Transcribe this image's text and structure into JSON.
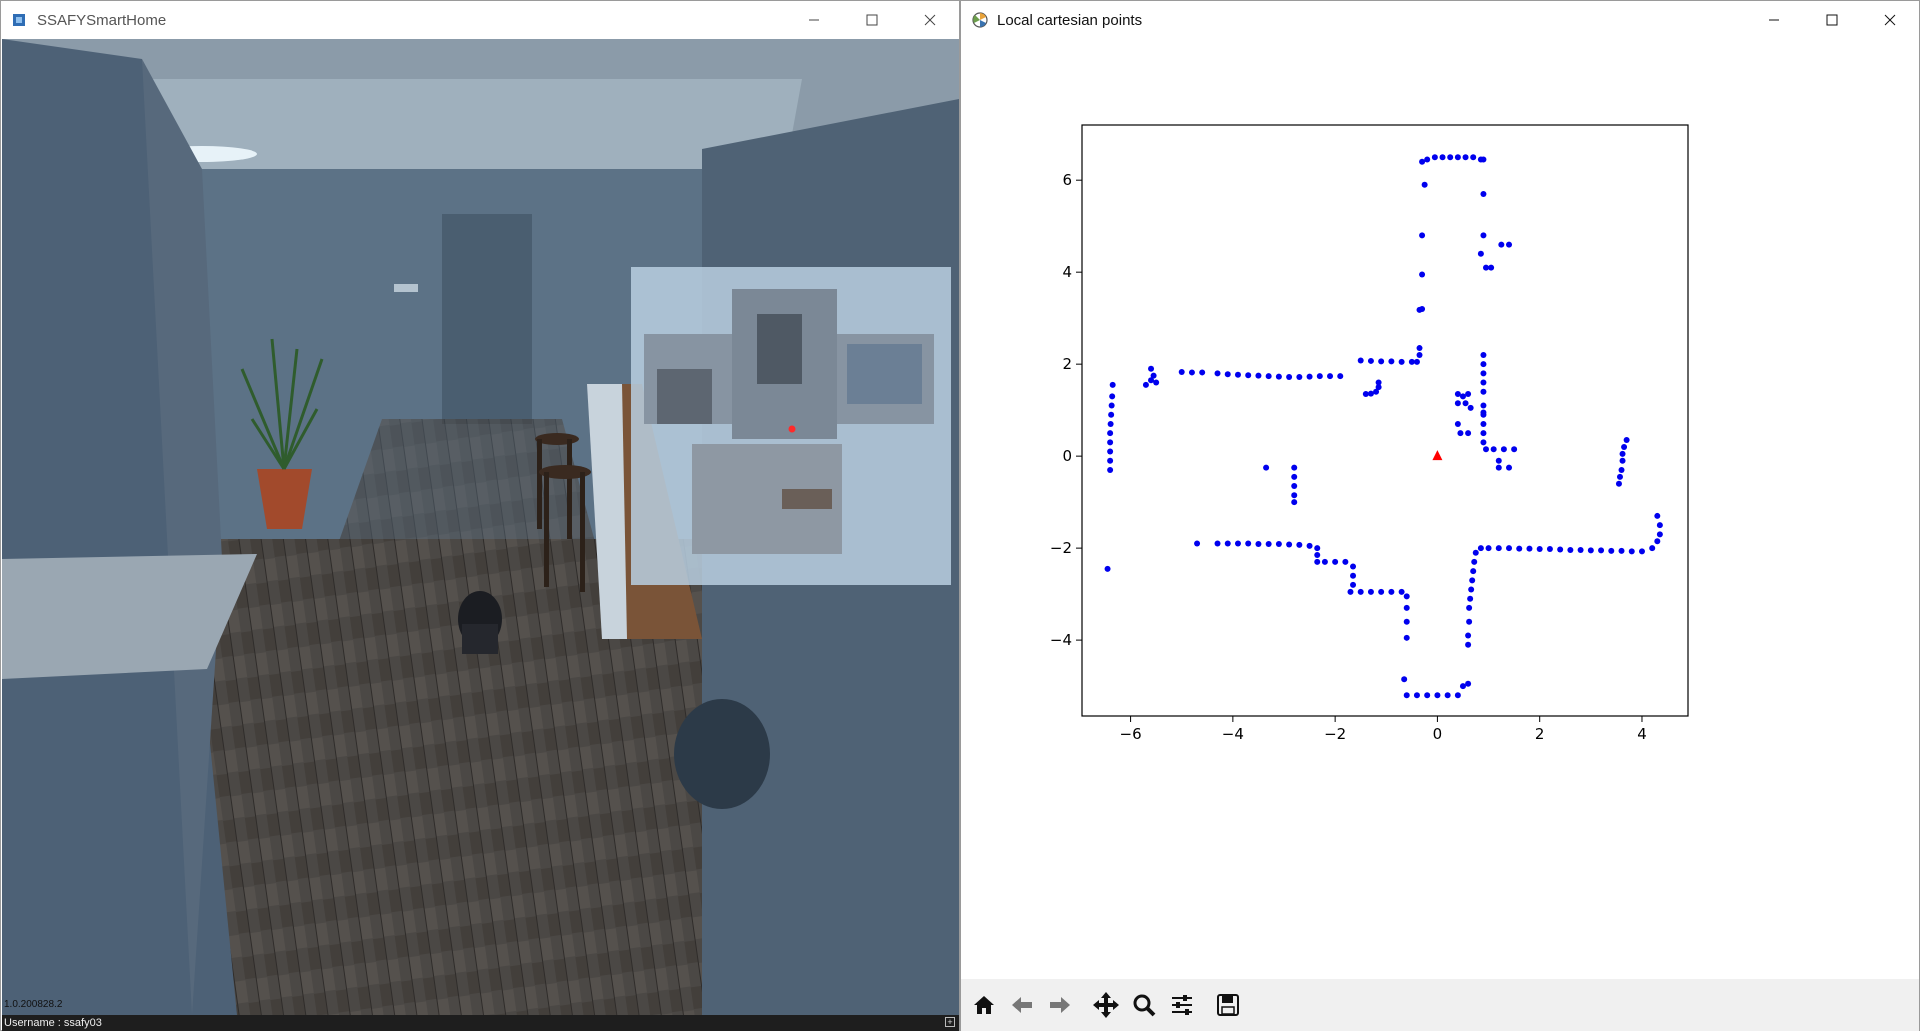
{
  "left_window": {
    "title": "SSAFYSmartHome",
    "version": "1.0.200828.2",
    "status_text": "Username : ssafy03",
    "controls": [
      "minimize-icon",
      "maximize-icon",
      "close-icon"
    ],
    "minimap_robot_color": "#ff2a2a"
  },
  "right_window": {
    "title": "Local cartesian points",
    "controls": [
      "minimize-icon",
      "maximize-icon",
      "close-icon"
    ],
    "toolbar": {
      "buttons": [
        {
          "name": "home-icon"
        },
        {
          "name": "back-arrow-icon"
        },
        {
          "name": "forward-arrow-icon"
        },
        {
          "name": "pan-move-icon"
        },
        {
          "name": "zoom-magnifier-icon"
        },
        {
          "name": "configure-subplots-icon"
        },
        {
          "name": "save-floppy-icon"
        }
      ]
    }
  },
  "chart_data": {
    "type": "scatter",
    "title": "",
    "xlabel": "",
    "ylabel": "",
    "xlim": [
      -6.95,
      4.9
    ],
    "ylim": [
      -5.65,
      7.2
    ],
    "xticks": [
      -6,
      -4,
      -2,
      0,
      2,
      4
    ],
    "yticks": [
      -4,
      -2,
      0,
      2,
      4,
      6
    ],
    "xtick_labels": [
      "−6",
      "−4",
      "−2",
      "0",
      "2",
      "4"
    ],
    "ytick_labels": [
      "−4",
      "−2",
      "0",
      "2",
      "4",
      "6"
    ],
    "grid": false,
    "colors": {
      "points": "#0000ee",
      "robot": "#ff0000"
    },
    "robot_marker": {
      "x": 0,
      "y": 0,
      "shape": "triangle"
    },
    "series": [
      {
        "points": [
          [
            -6.4,
            -0.3
          ],
          [
            -6.4,
            -0.1
          ],
          [
            -6.4,
            0.1
          ],
          [
            -6.4,
            0.3
          ],
          [
            -6.4,
            0.5
          ],
          [
            -6.39,
            0.7
          ],
          [
            -6.38,
            0.9
          ],
          [
            -6.37,
            1.1
          ],
          [
            -6.36,
            1.3
          ],
          [
            -6.35,
            1.55
          ],
          [
            -6.45,
            -2.45
          ],
          [
            -5.7,
            1.55
          ],
          [
            -5.6,
            1.65
          ],
          [
            -5.55,
            1.75
          ],
          [
            -5.5,
            1.6
          ],
          [
            -5.6,
            1.9
          ],
          [
            -5.0,
            1.83
          ],
          [
            -4.8,
            1.82
          ],
          [
            -4.6,
            1.82
          ],
          [
            -4.3,
            1.8
          ],
          [
            -4.1,
            1.78
          ],
          [
            -3.9,
            1.77
          ],
          [
            -3.7,
            1.76
          ],
          [
            -3.5,
            1.75
          ],
          [
            -3.3,
            1.74
          ],
          [
            -3.1,
            1.73
          ],
          [
            -2.9,
            1.72
          ],
          [
            -2.7,
            1.72
          ],
          [
            -2.5,
            1.73
          ],
          [
            -2.3,
            1.74
          ],
          [
            -2.1,
            1.74
          ],
          [
            -1.9,
            1.74
          ],
          [
            -1.5,
            2.08
          ],
          [
            -1.3,
            2.07
          ],
          [
            -1.1,
            2.06
          ],
          [
            -0.9,
            2.06
          ],
          [
            -0.7,
            2.05
          ],
          [
            -0.5,
            2.05
          ],
          [
            -0.4,
            2.05
          ],
          [
            -0.35,
            2.2
          ],
          [
            -0.35,
            2.35
          ],
          [
            -1.4,
            1.35
          ],
          [
            -1.3,
            1.36
          ],
          [
            -1.2,
            1.4
          ],
          [
            -1.15,
            1.5
          ],
          [
            -1.15,
            1.6
          ],
          [
            -0.3,
            3.2
          ],
          [
            -0.35,
            3.18
          ],
          [
            -0.3,
            3.95
          ],
          [
            -0.3,
            4.8
          ],
          [
            -0.25,
            5.9
          ],
          [
            -0.3,
            6.4
          ],
          [
            -0.2,
            6.45
          ],
          [
            -0.05,
            6.5
          ],
          [
            0.1,
            6.5
          ],
          [
            0.25,
            6.5
          ],
          [
            0.4,
            6.5
          ],
          [
            0.55,
            6.5
          ],
          [
            0.7,
            6.5
          ],
          [
            0.85,
            6.45
          ],
          [
            0.9,
            6.45
          ],
          [
            0.9,
            5.7
          ],
          [
            0.9,
            4.8
          ],
          [
            0.85,
            4.4
          ],
          [
            0.95,
            4.1
          ],
          [
            1.05,
            4.1
          ],
          [
            1.25,
            4.6
          ],
          [
            1.4,
            4.6
          ],
          [
            0.9,
            2.2
          ],
          [
            0.9,
            2.0
          ],
          [
            0.9,
            1.8
          ],
          [
            0.9,
            1.6
          ],
          [
            0.9,
            1.4
          ],
          [
            0.9,
            1.1
          ],
          [
            0.9,
            0.9
          ],
          [
            0.9,
            0.7
          ],
          [
            0.9,
            0.5
          ],
          [
            0.9,
            0.3
          ],
          [
            0.95,
            0.15
          ],
          [
            1.1,
            0.15
          ],
          [
            1.3,
            0.15
          ],
          [
            1.5,
            0.15
          ],
          [
            1.2,
            -0.1
          ],
          [
            1.2,
            -0.25
          ],
          [
            1.4,
            -0.25
          ],
          [
            0.4,
            1.35
          ],
          [
            0.5,
            1.3
          ],
          [
            0.6,
            1.35
          ],
          [
            0.4,
            1.15
          ],
          [
            0.55,
            1.15
          ],
          [
            0.65,
            1.05
          ],
          [
            0.4,
            0.7
          ],
          [
            0.45,
            0.5
          ],
          [
            0.6,
            0.5
          ],
          [
            0.9,
            0.95
          ],
          [
            3.55,
            -0.6
          ],
          [
            3.57,
            -0.45
          ],
          [
            3.6,
            -0.3
          ],
          [
            3.62,
            -0.1
          ],
          [
            3.62,
            0.05
          ],
          [
            3.65,
            0.2
          ],
          [
            3.7,
            0.35
          ],
          [
            4.3,
            -1.3
          ],
          [
            4.35,
            -1.5
          ],
          [
            4.35,
            -1.7
          ],
          [
            4.3,
            -1.85
          ],
          [
            4.2,
            -2.0
          ],
          [
            4.0,
            -2.07
          ],
          [
            3.8,
            -2.07
          ],
          [
            3.6,
            -2.06
          ],
          [
            3.4,
            -2.06
          ],
          [
            3.2,
            -2.05
          ],
          [
            3.0,
            -2.05
          ],
          [
            2.8,
            -2.04
          ],
          [
            2.6,
            -2.04
          ],
          [
            2.4,
            -2.03
          ],
          [
            2.2,
            -2.02
          ],
          [
            2.0,
            -2.02
          ],
          [
            1.8,
            -2.01
          ],
          [
            1.6,
            -2.01
          ],
          [
            1.4,
            -2.0
          ],
          [
            1.2,
            -2.0
          ],
          [
            1.0,
            -2.0
          ],
          [
            0.85,
            -2.0
          ],
          [
            0.75,
            -2.1
          ],
          [
            0.72,
            -2.3
          ],
          [
            0.7,
            -2.5
          ],
          [
            0.68,
            -2.7
          ],
          [
            0.66,
            -2.9
          ],
          [
            0.64,
            -3.1
          ],
          [
            0.62,
            -3.3
          ],
          [
            0.62,
            -3.6
          ],
          [
            0.6,
            -3.9
          ],
          [
            0.6,
            -4.1
          ],
          [
            0.6,
            -4.95
          ],
          [
            0.5,
            -5.0
          ],
          [
            0.4,
            -5.2
          ],
          [
            0.2,
            -5.2
          ],
          [
            0.0,
            -5.2
          ],
          [
            -0.2,
            -5.2
          ],
          [
            -0.4,
            -5.2
          ],
          [
            -0.6,
            -5.2
          ],
          [
            -0.65,
            -4.85
          ],
          [
            -0.6,
            -3.95
          ],
          [
            -0.6,
            -3.6
          ],
          [
            -0.6,
            -3.3
          ],
          [
            -0.6,
            -3.05
          ],
          [
            -0.7,
            -2.95
          ],
          [
            -0.9,
            -2.95
          ],
          [
            -1.1,
            -2.95
          ],
          [
            -1.3,
            -2.95
          ],
          [
            -1.5,
            -2.95
          ],
          [
            -1.7,
            -2.95
          ],
          [
            -1.65,
            -2.8
          ],
          [
            -1.65,
            -2.6
          ],
          [
            -1.65,
            -2.4
          ],
          [
            -1.8,
            -2.3
          ],
          [
            -2.0,
            -2.3
          ],
          [
            -2.2,
            -2.3
          ],
          [
            -2.35,
            -2.3
          ],
          [
            -2.35,
            -2.15
          ],
          [
            -2.35,
            -2.0
          ],
          [
            -2.5,
            -1.95
          ],
          [
            -2.7,
            -1.93
          ],
          [
            -2.9,
            -1.92
          ],
          [
            -3.1,
            -1.91
          ],
          [
            -3.3,
            -1.91
          ],
          [
            -3.5,
            -1.91
          ],
          [
            -3.7,
            -1.9
          ],
          [
            -3.9,
            -1.9
          ],
          [
            -4.1,
            -1.9
          ],
          [
            -4.3,
            -1.9
          ],
          [
            -4.7,
            -1.9
          ],
          [
            -2.8,
            -0.25
          ],
          [
            -2.8,
            -0.45
          ],
          [
            -2.8,
            -0.65
          ],
          [
            -2.8,
            -0.85
          ],
          [
            -2.8,
            -1.0
          ],
          [
            -3.35,
            -0.25
          ]
        ]
      }
    ]
  }
}
